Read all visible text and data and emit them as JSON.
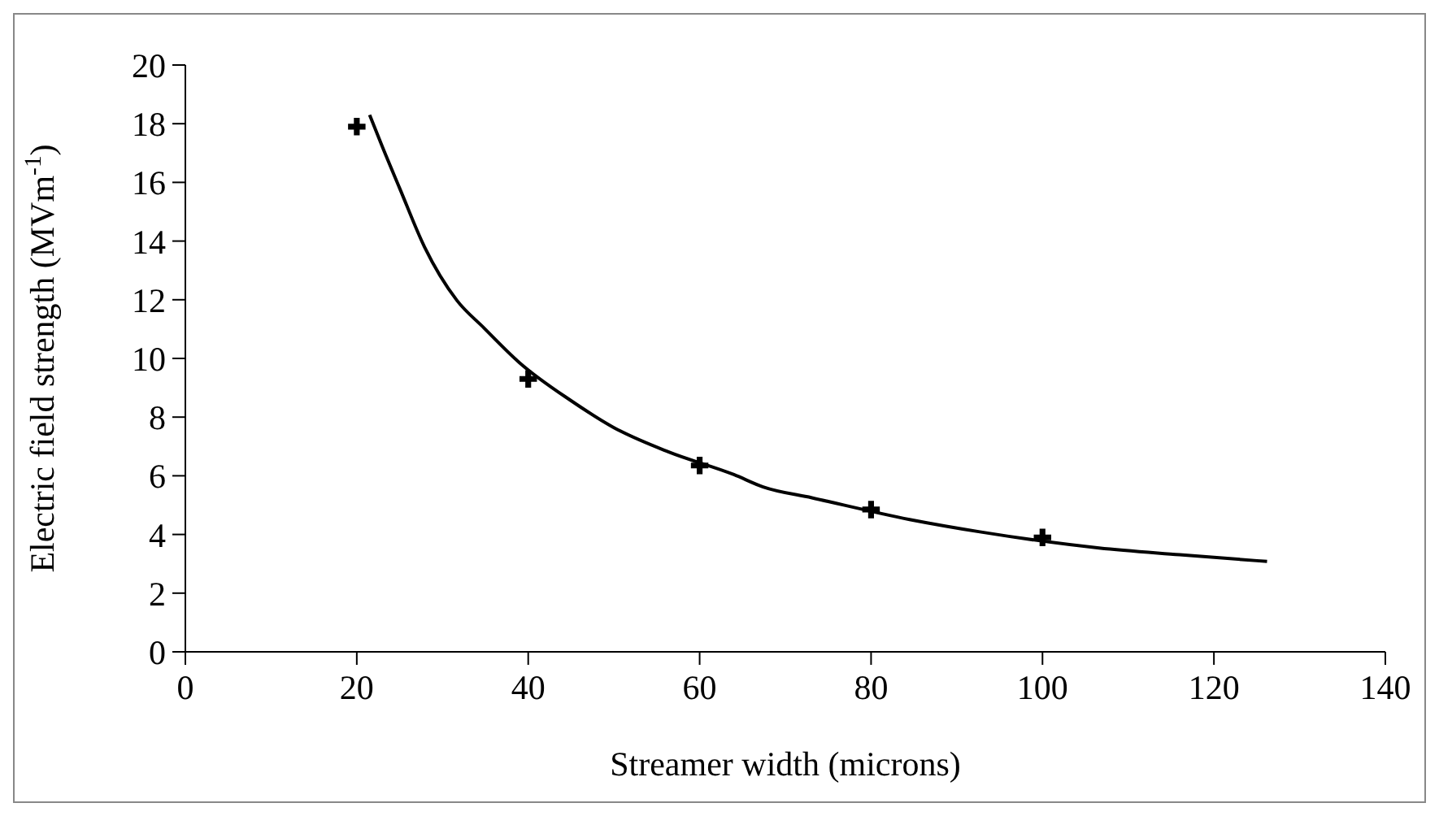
{
  "chart_data": {
    "type": "line",
    "xlabel": "Streamer width (microns)",
    "ylabel": "Electric field strength (MVm$^{-1}$)",
    "xlim": [
      0,
      140
    ],
    "xticks": [
      0,
      20,
      40,
      60,
      80,
      100,
      120,
      140
    ],
    "ylim": [
      0,
      20
    ],
    "yticks": [
      0,
      2,
      4,
      6,
      8,
      10,
      12,
      14,
      16,
      18,
      20
    ],
    "grid": false,
    "legend": false,
    "series": [
      {
        "color": "#000000",
        "marker": "none",
        "line_style": "solid",
        "x": [
          21.5,
          23,
          25,
          27.9,
          31.7,
          34.8,
          39,
          45,
          50,
          56.4,
          64,
          67.4,
          73.1,
          84.5,
          92.7,
          106.6,
          116,
          126.2
        ],
        "values": [
          18.3,
          17.2,
          15.8,
          13.8,
          11.97,
          11.05,
          9.85,
          8.56,
          7.64,
          6.81,
          6.04,
          5.62,
          5.25,
          4.51,
          4.09,
          3.54,
          3.31,
          3.08
        ]
      },
      {
        "type": "scatter",
        "color": "#000000",
        "marker": "cross",
        "x": [
          20,
          40,
          60,
          80,
          100
        ],
        "values": [
          17.9,
          9.3,
          6.35,
          4.85,
          3.9
        ]
      }
    ]
  }
}
